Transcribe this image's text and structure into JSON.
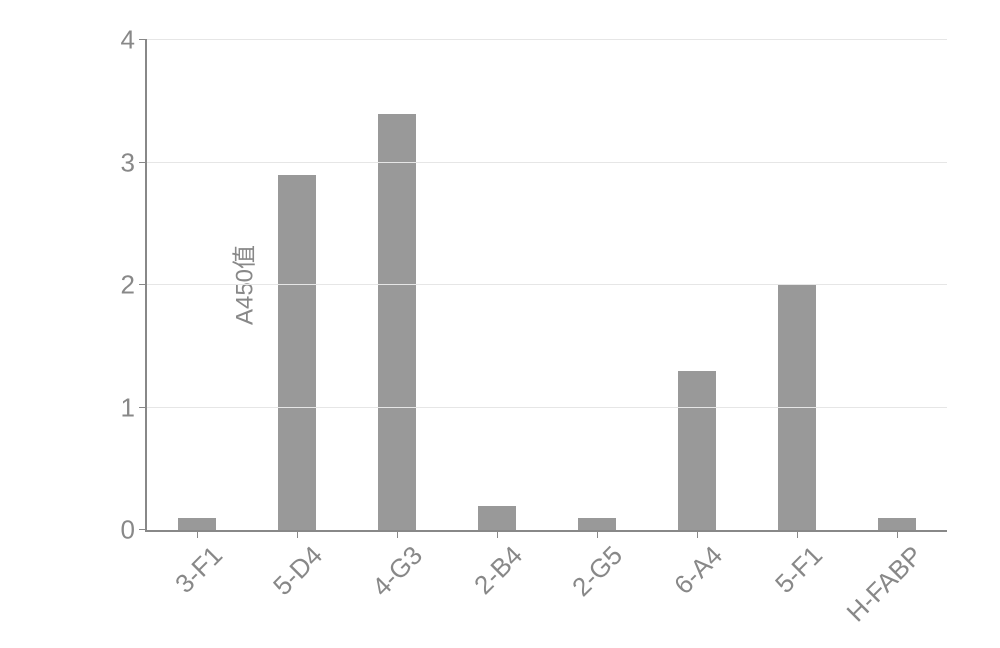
{
  "chart": {
    "type": "bar",
    "ylabel": "A450值",
    "label_fontsize": 24,
    "tick_fontsize": 26,
    "ylim": [
      0,
      4
    ],
    "ytick_step": 1,
    "yticks": [
      0,
      1,
      2,
      3,
      4
    ],
    "categories": [
      "3-F1",
      "5-D4",
      "4-G3",
      "2-B4",
      "2-G5",
      "6-A4",
      "5-F1",
      "H-FABP"
    ],
    "values": [
      0.1,
      2.9,
      3.4,
      0.2,
      0.1,
      1.3,
      2.0,
      0.1
    ],
    "bar_color": "#999999",
    "bar_width": 0.38,
    "background_color": "#ffffff",
    "grid_color": "#e6e6e6",
    "axis_color": "#888888",
    "tick_color": "#888888",
    "text_color": "#888888",
    "xlabel_rotation": -45
  }
}
